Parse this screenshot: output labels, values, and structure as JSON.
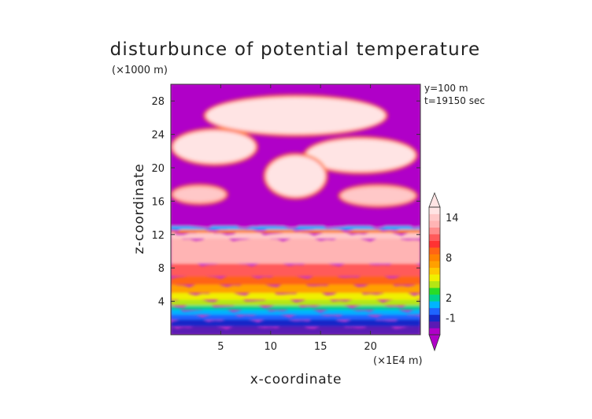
{
  "chart_data": {
    "type": "heatmap",
    "title": "disturbunce of potential temperature",
    "xlabel": "x-coordinate",
    "ylabel": "z-coordinate",
    "x_unit": "(×1E4 m)",
    "y_unit": "(×1000 m)",
    "annotations": [
      "y=100 m",
      "t=19150 sec"
    ],
    "xlim": [
      0,
      25
    ],
    "ylim": [
      0,
      30
    ],
    "x_ticks": [
      5,
      10,
      15,
      20
    ],
    "y_ticks": [
      4,
      8,
      12,
      16,
      20,
      24,
      28
    ],
    "x_tick_labels": [
      "5",
      "10",
      "15",
      "20"
    ],
    "y_tick_labels": [
      "4",
      "8",
      "12",
      "16",
      "20",
      "24",
      "28"
    ],
    "colorbar": {
      "levels": [
        -3,
        -2,
        -1,
        0,
        1,
        2,
        3,
        4,
        5,
        6,
        7,
        8,
        9,
        10,
        11,
        12,
        13,
        14,
        15
      ],
      "labels": [
        "-1",
        "2",
        "8",
        "14"
      ],
      "label_values": [
        -1,
        2,
        8,
        14
      ],
      "colors": [
        "#b000c8",
        "#5a1ab4",
        "#1428c8",
        "#1e64ff",
        "#00b4ff",
        "#00d28c",
        "#28dc28",
        "#b4e614",
        "#f0f000",
        "#ffc800",
        "#ffa000",
        "#ff8200",
        "#ff6414",
        "#ff3232",
        "#ff5a5a",
        "#ff8c8c",
        "#ffb4b4",
        "#ffc8c8",
        "#ffe4e4"
      ]
    },
    "background_color": "#c832c8",
    "grid": false,
    "bands": [
      {
        "z_range": [
          0.0,
          1.0
        ],
        "value": -1.5
      },
      {
        "z_range": [
          1.0,
          1.8
        ],
        "value": -0.5
      },
      {
        "z_range": [
          1.8,
          2.4
        ],
        "value": 0.5
      },
      {
        "z_range": [
          2.4,
          3.0
        ],
        "value": 1.5
      },
      {
        "z_range": [
          3.0,
          3.5
        ],
        "value": 2.5
      },
      {
        "z_range": [
          3.5,
          4.2
        ],
        "value": 4
      },
      {
        "z_range": [
          4.2,
          5.0
        ],
        "value": 5
      },
      {
        "z_range": [
          5.0,
          6.0
        ],
        "value": 7
      },
      {
        "z_range": [
          6.0,
          7.0
        ],
        "value": 9
      },
      {
        "z_range": [
          7.0,
          8.5
        ],
        "value": 11
      },
      {
        "z_range": [
          8.5,
          11.5
        ],
        "value": 13
      },
      {
        "z_range": [
          11.5,
          12.2
        ],
        "value": 14
      },
      {
        "z_range": [
          12.2,
          12.6
        ],
        "value": 8
      },
      {
        "z_range": [
          12.6,
          13.0
        ],
        "value": 1
      },
      {
        "z_range": [
          13.0,
          30.0
        ],
        "value": -3
      }
    ],
    "anomalies": [
      {
        "name": "upper arch",
        "x_range": [
          3.5,
          21.5
        ],
        "z_range": [
          24.0,
          28.5
        ],
        "value": 15
      },
      {
        "name": "left upper lobe",
        "x_range": [
          0.2,
          8.5
        ],
        "z_range": [
          20.5,
          24.5
        ],
        "value": 15
      },
      {
        "name": "right upper lobe",
        "x_range": [
          13.5,
          24.5
        ],
        "z_range": [
          19.5,
          23.5
        ],
        "value": 15
      },
      {
        "name": "central plume",
        "x_range": [
          9.5,
          15.5
        ],
        "z_range": [
          16.5,
          21.5
        ],
        "value": 15
      },
      {
        "name": "left layer 16-18",
        "x_range": [
          0.2,
          5.5
        ],
        "z_range": [
          15.8,
          17.8
        ],
        "value": 14
      },
      {
        "name": "right layer 16-18",
        "x_range": [
          17.0,
          24.5
        ],
        "z_range": [
          15.5,
          17.8
        ],
        "value": 14
      }
    ]
  }
}
